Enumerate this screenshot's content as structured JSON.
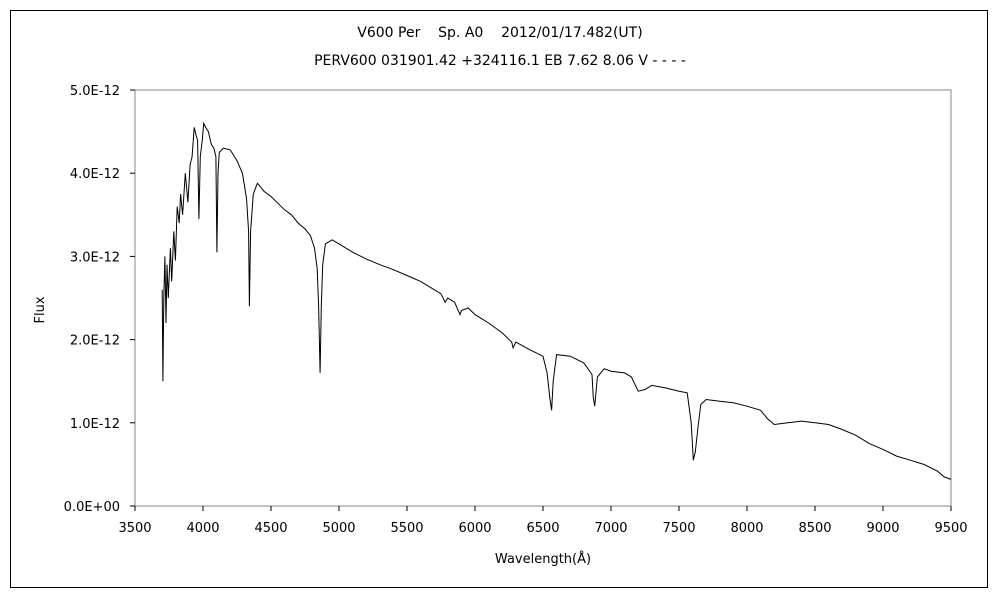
{
  "chart_data": {
    "type": "line",
    "title": "V600 Per    Sp. A0    2012/01/17.482(UT)",
    "subtitle": "PERV600 031901.42 +324116.1 EB 7.62 8.06 V - - - -",
    "xlabel": "Wavelength(Å)",
    "ylabel": "Flux",
    "xlim": [
      3500,
      9500
    ],
    "ylim": [
      0,
      5e-12
    ],
    "x_ticks": [
      "3500",
      "4000",
      "4500",
      "5000",
      "5500",
      "6000",
      "6500",
      "7000",
      "7500",
      "8000",
      "8500",
      "9000",
      "9500"
    ],
    "y_ticks": [
      "0.0E+00",
      "1.0E-12",
      "2.0E-12",
      "3.0E-12",
      "4.0E-12",
      "5.0E-12"
    ],
    "grid": false,
    "legend": "none",
    "line_color": "#000000",
    "series": [
      {
        "values": [
          [
            3700,
            2.6e-12
          ],
          [
            3705,
            1.5e-12
          ],
          [
            3712,
            2.5e-12
          ],
          [
            3720,
            3e-12
          ],
          [
            3728,
            2.2e-12
          ],
          [
            3735,
            2.9e-12
          ],
          [
            3745,
            2.5e-12
          ],
          [
            3760,
            3.1e-12
          ],
          [
            3770,
            2.7e-12
          ],
          [
            3785,
            3.3e-12
          ],
          [
            3797,
            2.95e-12
          ],
          [
            3810,
            3.6e-12
          ],
          [
            3825,
            3.4e-12
          ],
          [
            3835,
            3.75e-12
          ],
          [
            3850,
            3.5e-12
          ],
          [
            3870,
            4e-12
          ],
          [
            3889,
            3.65e-12
          ],
          [
            3905,
            4.1e-12
          ],
          [
            3920,
            4.2e-12
          ],
          [
            3935,
            4.55e-12
          ],
          [
            3950,
            4.45e-12
          ],
          [
            3960,
            4.4e-12
          ],
          [
            3970,
            3.45e-12
          ],
          [
            3980,
            4.2e-12
          ],
          [
            3995,
            4.4e-12
          ],
          [
            4005,
            4.6e-12
          ],
          [
            4020,
            4.55e-12
          ],
          [
            4040,
            4.5e-12
          ],
          [
            4060,
            4.35e-12
          ],
          [
            4080,
            4.3e-12
          ],
          [
            4095,
            4.2e-12
          ],
          [
            4102,
            3.05e-12
          ],
          [
            4110,
            4e-12
          ],
          [
            4120,
            4.25e-12
          ],
          [
            4150,
            4.3e-12
          ],
          [
            4200,
            4.28e-12
          ],
          [
            4250,
            4.15e-12
          ],
          [
            4290,
            4e-12
          ],
          [
            4320,
            3.7e-12
          ],
          [
            4335,
            3.3e-12
          ],
          [
            4341,
            2.4e-12
          ],
          [
            4350,
            3.3e-12
          ],
          [
            4370,
            3.75e-12
          ],
          [
            4400,
            3.88e-12
          ],
          [
            4450,
            3.78e-12
          ],
          [
            4500,
            3.72e-12
          ],
          [
            4550,
            3.64e-12
          ],
          [
            4600,
            3.56e-12
          ],
          [
            4650,
            3.5e-12
          ],
          [
            4700,
            3.4e-12
          ],
          [
            4750,
            3.33e-12
          ],
          [
            4790,
            3.25e-12
          ],
          [
            4820,
            3.1e-12
          ],
          [
            4840,
            2.85e-12
          ],
          [
            4850,
            2.4e-12
          ],
          [
            4861,
            1.6e-12
          ],
          [
            4870,
            2.4e-12
          ],
          [
            4880,
            2.9e-12
          ],
          [
            4900,
            3.15e-12
          ],
          [
            4950,
            3.2e-12
          ],
          [
            5000,
            3.15e-12
          ],
          [
            5100,
            3.05e-12
          ],
          [
            5200,
            2.97e-12
          ],
          [
            5300,
            2.9e-12
          ],
          [
            5400,
            2.84e-12
          ],
          [
            5500,
            2.77e-12
          ],
          [
            5600,
            2.7e-12
          ],
          [
            5700,
            2.6e-12
          ],
          [
            5750,
            2.55e-12
          ],
          [
            5780,
            2.45e-12
          ],
          [
            5800,
            2.5e-12
          ],
          [
            5850,
            2.45e-12
          ],
          [
            5890,
            2.3e-12
          ],
          [
            5900,
            2.35e-12
          ],
          [
            5950,
            2.38e-12
          ],
          [
            6000,
            2.3e-12
          ],
          [
            6100,
            2.2e-12
          ],
          [
            6200,
            2.08e-12
          ],
          [
            6270,
            1.97e-12
          ],
          [
            6280,
            1.9e-12
          ],
          [
            6300,
            1.97e-12
          ],
          [
            6400,
            1.88e-12
          ],
          [
            6500,
            1.8e-12
          ],
          [
            6530,
            1.6e-12
          ],
          [
            6550,
            1.3e-12
          ],
          [
            6563,
            1.15e-12
          ],
          [
            6575,
            1.5e-12
          ],
          [
            6600,
            1.82e-12
          ],
          [
            6700,
            1.8e-12
          ],
          [
            6800,
            1.72e-12
          ],
          [
            6860,
            1.58e-12
          ],
          [
            6870,
            1.3e-12
          ],
          [
            6880,
            1.2e-12
          ],
          [
            6900,
            1.55e-12
          ],
          [
            6950,
            1.65e-12
          ],
          [
            7000,
            1.62e-12
          ],
          [
            7100,
            1.6e-12
          ],
          [
            7150,
            1.55e-12
          ],
          [
            7200,
            1.38e-12
          ],
          [
            7250,
            1.4e-12
          ],
          [
            7300,
            1.45e-12
          ],
          [
            7400,
            1.42e-12
          ],
          [
            7500,
            1.38e-12
          ],
          [
            7560,
            1.36e-12
          ],
          [
            7590,
            1e-12
          ],
          [
            7605,
            5.5e-13
          ],
          [
            7620,
            6.5e-13
          ],
          [
            7640,
            9.5e-13
          ],
          [
            7660,
            1.22e-12
          ],
          [
            7700,
            1.28e-12
          ],
          [
            7800,
            1.26e-12
          ],
          [
            7900,
            1.24e-12
          ],
          [
            8000,
            1.2e-12
          ],
          [
            8100,
            1.15e-12
          ],
          [
            8150,
            1.05e-12
          ],
          [
            8200,
            9.8e-13
          ],
          [
            8300,
            1e-12
          ],
          [
            8400,
            1.02e-12
          ],
          [
            8500,
            1e-12
          ],
          [
            8600,
            9.8e-13
          ],
          [
            8700,
            9.2e-13
          ],
          [
            8800,
            8.5e-13
          ],
          [
            8900,
            7.5e-13
          ],
          [
            9000,
            6.8e-13
          ],
          [
            9100,
            6e-13
          ],
          [
            9200,
            5.5e-13
          ],
          [
            9300,
            5e-13
          ],
          [
            9400,
            4.2e-13
          ],
          [
            9450,
            3.5e-13
          ],
          [
            9500,
            3.2e-13
          ]
        ]
      }
    ]
  }
}
